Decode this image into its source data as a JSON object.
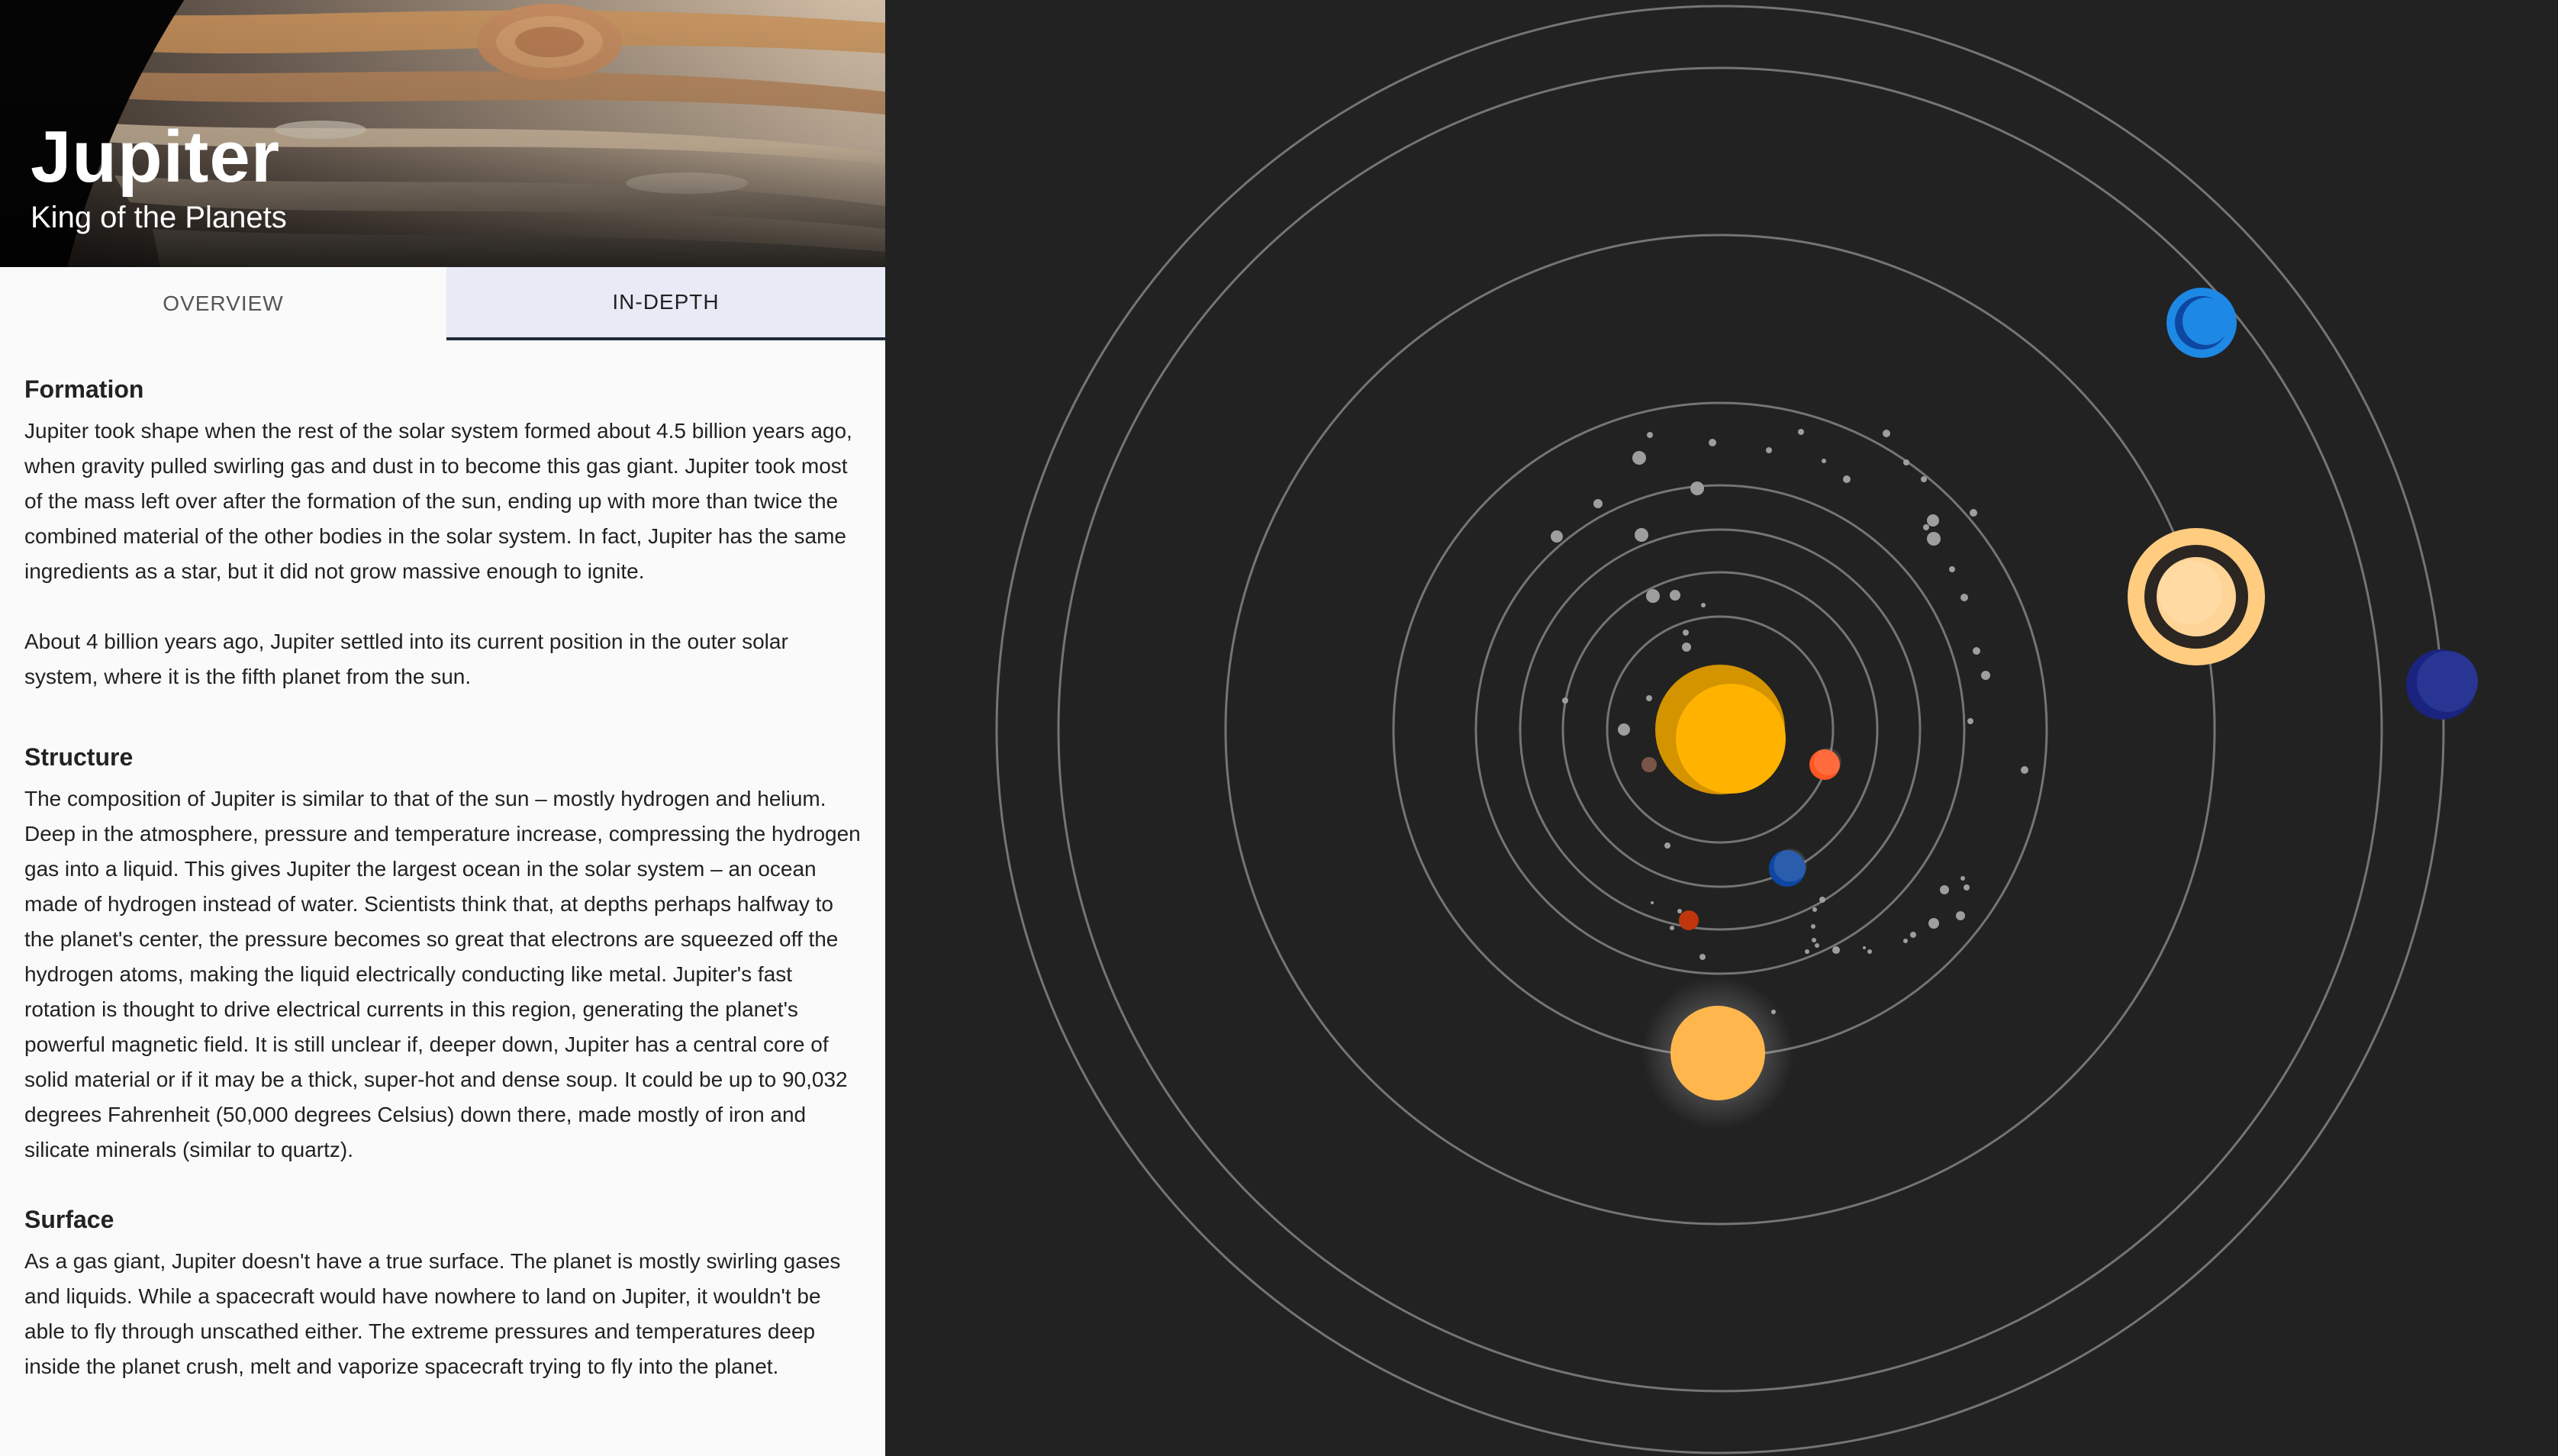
{
  "planet": {
    "name": "Jupiter",
    "tagline": "King of the Planets"
  },
  "tabs": [
    {
      "label": "OVERVIEW",
      "selected": false
    },
    {
      "label": "IN-DEPTH",
      "selected": true
    }
  ],
  "sections": [
    {
      "heading": "Formation",
      "paragraphs": [
        "Jupiter took shape when the rest of the solar system formed about 4.5 billion years ago, when gravity pulled swirling gas and dust in to become this gas giant. Jupiter took most of the mass left over after the formation of the sun, ending up with more than twice the combined material of the other bodies in the solar system. In fact, Jupiter has the same ingredients as a star, but it did not grow massive enough to ignite.",
        "About 4 billion years ago, Jupiter settled into its current position in the outer solar system, where it is the fifth planet from the sun."
      ]
    },
    {
      "heading": "Structure",
      "paragraphs": [
        "The composition of Jupiter is similar to that of the sun – mostly hydrogen and helium. Deep in the atmosphere, pressure and temperature increase, compressing the hydrogen gas into a liquid. This gives Jupiter the largest ocean in the solar system – an ocean made of hydrogen instead of water. Scientists think that, at depths perhaps halfway to the planet's center, the pressure becomes so great that electrons are squeezed off the hydrogen atoms, making the liquid electrically conducting like metal. Jupiter's fast rotation is thought to drive electrical currents in this region, generating the planet's powerful magnetic field. It is still unclear if, deeper down, Jupiter has a central core of solid material or if it may be a thick, super-hot and dense soup. It could be up to 90,032 degrees Fahrenheit (50,000 degrees Celsius) down there, made mostly of iron and silicate minerals (similar to quartz)."
      ]
    },
    {
      "heading": "Surface",
      "paragraphs": [
        "As a gas giant, Jupiter doesn't have a true surface. The planet is mostly swirling gases and liquids. While a spacecraft would have nowhere to land on Jupiter, it wouldn't be able to fly through unscathed either. The extreme pressures and temperatures deep inside the planet crush, melt and vaporize spacecraft trying to fly into the planet."
      ]
    }
  ],
  "solar_system": {
    "bodies": [
      {
        "name": "sun",
        "color": "#ffb300"
      },
      {
        "name": "mercury",
        "color": "#795548"
      },
      {
        "name": "venus",
        "color": "#ff5722"
      },
      {
        "name": "earth",
        "color": "#0d47a1"
      },
      {
        "name": "mars",
        "color": "#bf360c"
      },
      {
        "name": "jupiter",
        "color": "#ffb74d",
        "selected": true
      },
      {
        "name": "saturn",
        "color": "#ffcc80"
      },
      {
        "name": "uranus",
        "color": "#1e88e5"
      },
      {
        "name": "neptune",
        "color": "#283593"
      }
    ],
    "orbit_color": "#757575",
    "asteroid_color": "#9e9e9e"
  }
}
